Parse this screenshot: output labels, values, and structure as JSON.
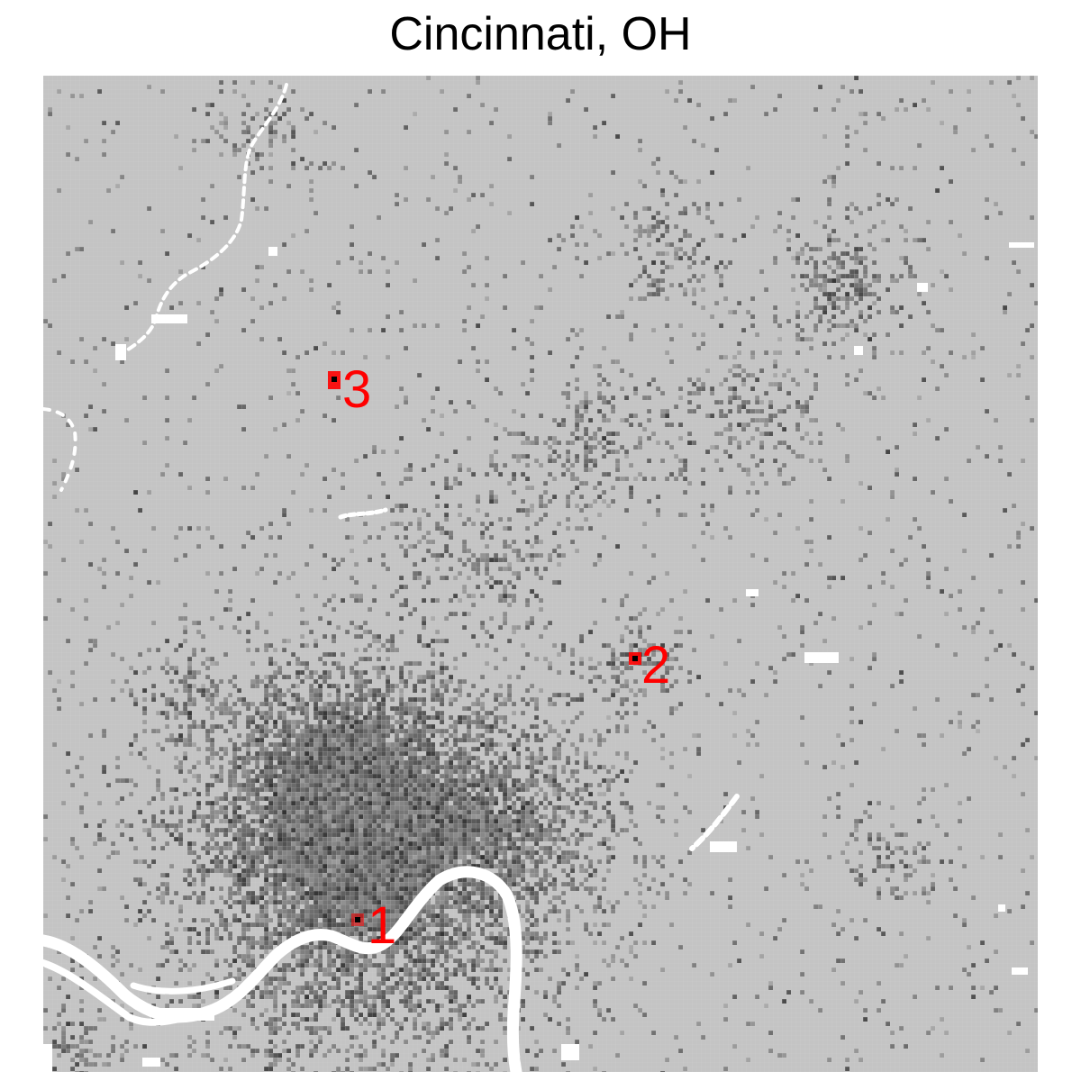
{
  "title": "Cincinnati, OH",
  "colors": {
    "background": "#c4c4c4",
    "grid_line": "#d6d6d6",
    "water": "#ffffff",
    "marker": "#ff0000",
    "marker_center": "#000000"
  },
  "markers": [
    {
      "label": "1"
    },
    {
      "label": "2"
    },
    {
      "label": "3"
    }
  ]
}
